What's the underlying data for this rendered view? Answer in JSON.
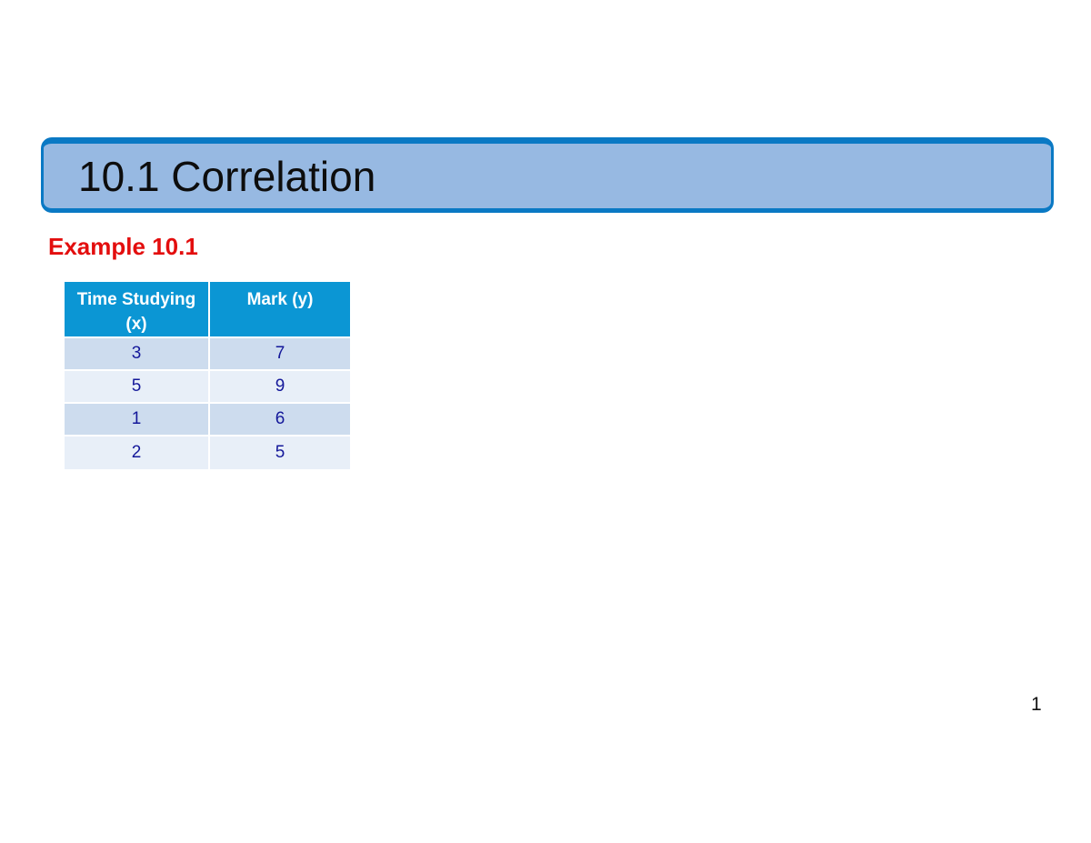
{
  "slide": {
    "title": "10.1 Correlation",
    "example_label": "Example 10.1",
    "page_number": "1"
  },
  "table": {
    "headers": [
      "Time Studying (x)",
      "Mark (y)"
    ],
    "rows": [
      {
        "x": "3",
        "y": "7"
      },
      {
        "x": "5",
        "y": "9"
      },
      {
        "x": "1",
        "y": "6"
      },
      {
        "x": "2",
        "y": "5"
      }
    ]
  },
  "colors": {
    "title_bar_fill": "#97b9e2",
    "title_bar_border": "#0a79c4",
    "example_label": "#e30e0e",
    "table_header": "#0b96d4",
    "table_row_dark": "#cddcee",
    "table_row_light": "#e8eff8",
    "table_text": "#14189a"
  }
}
